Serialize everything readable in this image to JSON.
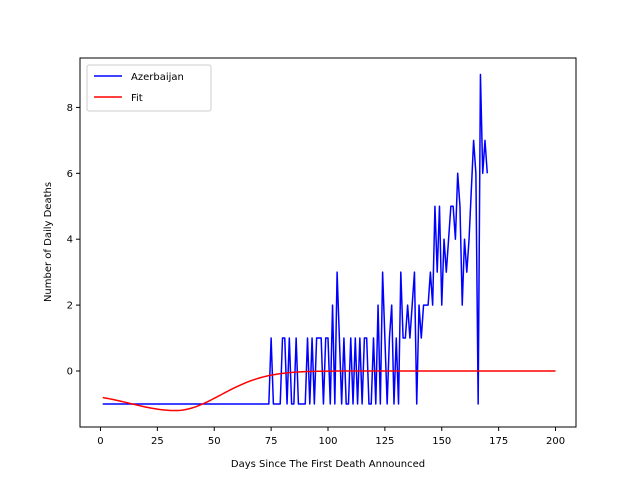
{
  "chart_data": {
    "type": "line",
    "xlabel": "Days Since The First Death Announced",
    "ylabel": "Number of Daily Deaths",
    "xlim": [
      -9,
      209
    ],
    "ylim": [
      -1.7,
      9.5
    ],
    "xticks": [
      0,
      25,
      50,
      75,
      100,
      125,
      150,
      175,
      200
    ],
    "yticks": [
      0,
      2,
      4,
      6,
      8
    ],
    "grid": false,
    "legend_position": "top-left",
    "series": [
      {
        "name": "Azerbaijan",
        "color": "#0000ff",
        "points": [
          [
            1,
            -1
          ],
          [
            74,
            -1
          ],
          [
            75,
            1
          ],
          [
            76,
            -1
          ],
          [
            79,
            -1
          ],
          [
            80,
            1
          ],
          [
            81,
            1
          ],
          [
            82,
            -1
          ],
          [
            83,
            1
          ],
          [
            84,
            -1
          ],
          [
            85,
            -1
          ],
          [
            86,
            1
          ],
          [
            87,
            -1
          ],
          [
            90,
            -1
          ],
          [
            91,
            1
          ],
          [
            92,
            -1
          ],
          [
            93,
            1
          ],
          [
            94,
            -1
          ],
          [
            95,
            1
          ],
          [
            96,
            1
          ],
          [
            97,
            1
          ],
          [
            98,
            -1
          ],
          [
            99,
            1
          ],
          [
            100,
            1
          ],
          [
            101,
            -1
          ],
          [
            102,
            2
          ],
          [
            103,
            -1
          ],
          [
            104,
            3
          ],
          [
            105,
            1
          ],
          [
            106,
            -1
          ],
          [
            107,
            1
          ],
          [
            108,
            -1
          ],
          [
            109,
            -1
          ],
          [
            110,
            1
          ],
          [
            111,
            -1
          ],
          [
            112,
            1
          ],
          [
            113,
            -1
          ],
          [
            114,
            1
          ],
          [
            115,
            -1
          ],
          [
            116,
            1
          ],
          [
            117,
            1
          ],
          [
            118,
            -1
          ],
          [
            119,
            -1
          ],
          [
            120,
            1
          ],
          [
            121,
            -1
          ],
          [
            122,
            2
          ],
          [
            123,
            -1
          ],
          [
            124,
            3
          ],
          [
            125,
            1
          ],
          [
            126,
            -1
          ],
          [
            127,
            1
          ],
          [
            128,
            2
          ],
          [
            129,
            -1
          ],
          [
            130,
            1
          ],
          [
            131,
            -1
          ],
          [
            132,
            3
          ],
          [
            133,
            1
          ],
          [
            134,
            1
          ],
          [
            135,
            2
          ],
          [
            136,
            1
          ],
          [
            137,
            2
          ],
          [
            138,
            3
          ],
          [
            139,
            -1
          ],
          [
            140,
            2
          ],
          [
            141,
            1
          ],
          [
            142,
            2
          ],
          [
            144,
            2
          ],
          [
            145,
            3
          ],
          [
            146,
            2
          ],
          [
            147,
            5
          ],
          [
            148,
            3
          ],
          [
            149,
            5
          ],
          [
            150,
            2
          ],
          [
            151,
            4
          ],
          [
            152,
            3
          ],
          [
            153,
            4
          ],
          [
            154,
            5
          ],
          [
            155,
            5
          ],
          [
            156,
            4
          ],
          [
            157,
            6
          ],
          [
            158,
            5
          ],
          [
            159,
            2
          ],
          [
            160,
            4
          ],
          [
            161,
            3
          ],
          [
            162,
            4
          ],
          [
            164,
            7
          ],
          [
            165,
            6
          ],
          [
            166,
            -1
          ],
          [
            167,
            9
          ],
          [
            168,
            6
          ],
          [
            169,
            7
          ],
          [
            170,
            6
          ]
        ]
      },
      {
        "name": "Fit",
        "color": "#ff0000",
        "curve": {
          "baseline": -1.2,
          "peak_shift": 1.2,
          "center": 33,
          "width": 28,
          "x_start": 1,
          "x_end": 200
        }
      }
    ]
  }
}
